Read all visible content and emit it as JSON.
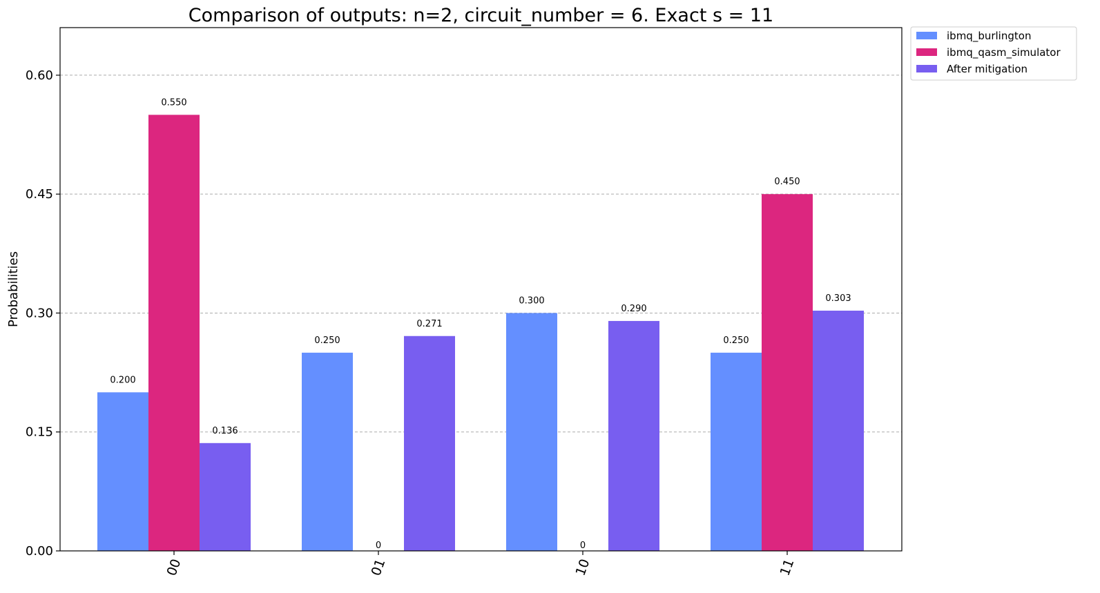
{
  "chart_data": {
    "type": "bar",
    "title": "Comparison of outputs: n=2, circuit_number = 6. Exact s = 11",
    "xlabel": "",
    "ylabel": "Probabilities",
    "categories": [
      "00",
      "01",
      "10",
      "11"
    ],
    "ylim": [
      0,
      0.66
    ],
    "yticks": [
      0.0,
      0.15,
      0.3,
      0.45,
      0.6
    ],
    "ytick_labels": [
      "0.00",
      "0.15",
      "0.30",
      "0.45",
      "0.60"
    ],
    "grid": "horizontal-dashed",
    "legend_position": "outside-top-right",
    "series": [
      {
        "name": "ibmq_burlington",
        "color": "#648fff",
        "values": [
          0.2,
          0.25,
          0.3,
          0.25
        ],
        "labels": [
          "0.200",
          "0.250",
          "0.300",
          "0.250"
        ]
      },
      {
        "name": "ibmq_qasm_simulator",
        "color": "#dc267f",
        "values": [
          0.55,
          0.0,
          0.0,
          0.45
        ],
        "labels": [
          "0.550",
          "0",
          "0",
          "0.450"
        ]
      },
      {
        "name": "After mitigation",
        "color": "#785ef0",
        "values": [
          0.136,
          0.271,
          0.29,
          0.303
        ],
        "labels": [
          "0.136",
          "0.271",
          "0.290",
          "0.303"
        ]
      }
    ]
  }
}
